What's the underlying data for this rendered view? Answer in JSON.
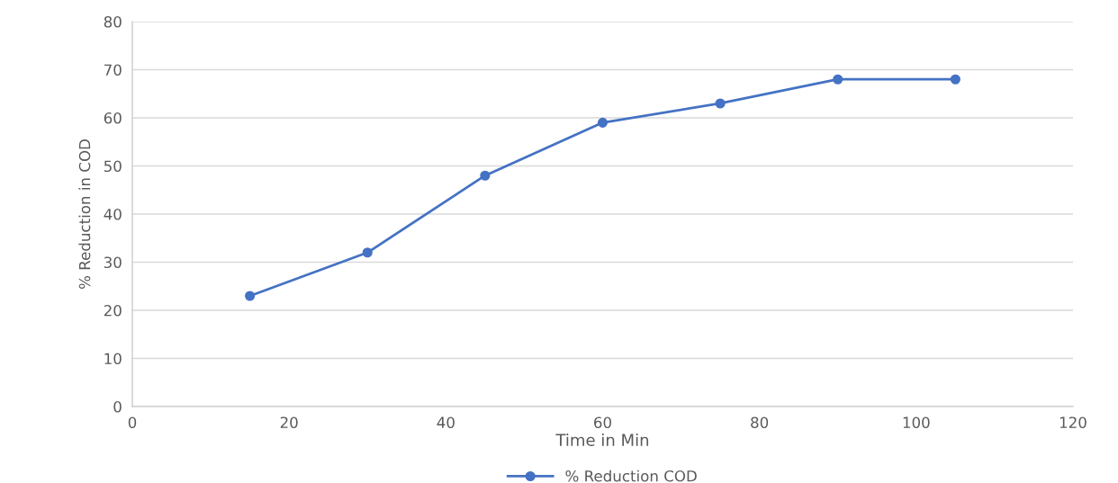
{
  "chart_data": {
    "type": "line",
    "xlabel": "Time in Min",
    "ylabel": "% Reduction in COD",
    "x": [
      15,
      30,
      45,
      60,
      75,
      90,
      105
    ],
    "series": [
      {
        "name": "% Reduction COD",
        "color": "#4472c4",
        "values": [
          23,
          32,
          48,
          59,
          63,
          68,
          68
        ]
      }
    ],
    "xlim": [
      0,
      120
    ],
    "xticks": [
      0,
      20,
      40,
      60,
      80,
      100,
      120
    ],
    "ylim": [
      0,
      80
    ],
    "yticks": [
      0,
      10,
      20,
      30,
      40,
      50,
      60,
      70,
      80
    ],
    "grid": "y",
    "legend": "bottom",
    "marker": "circle",
    "line_style": "solid"
  }
}
